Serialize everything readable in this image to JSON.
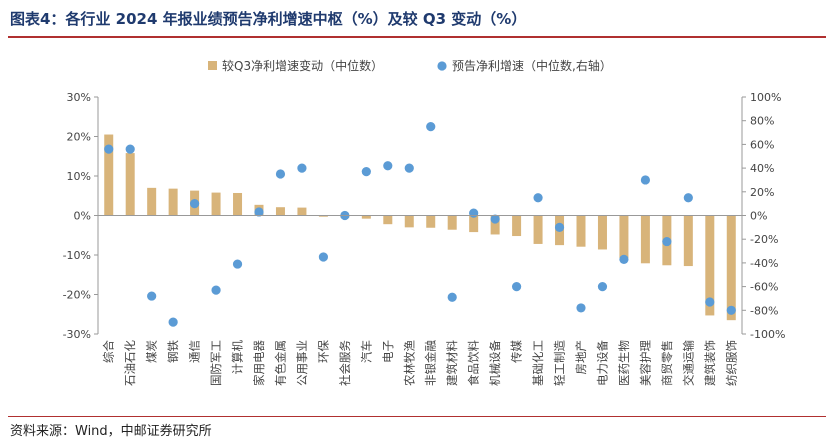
{
  "header": {
    "title": "图表4：各行业 2024 年报业绩预告净利增速中枢（%）及较 Q3 变动（%）"
  },
  "footer": {
    "source": "资料来源：Wind，中邮证券研究所"
  },
  "colors": {
    "bar": "#d8b47a",
    "dot": "#5b9bd5",
    "axis": "#999999",
    "tick_text": "#444444",
    "rule": "#b03030",
    "title": "#1f3a6e"
  },
  "chart_data": {
    "type": "bar",
    "title": "",
    "legend_position": "top-center",
    "grid": false,
    "categories": [
      "综合",
      "石油石化",
      "煤炭",
      "钢铁",
      "通信",
      "国防军工",
      "计算机",
      "家用电器",
      "有色金属",
      "公用事业",
      "环保",
      "社会服务",
      "汽车",
      "电子",
      "农林牧渔",
      "非银金融",
      "建筑材料",
      "食品饮料",
      "机械设备",
      "传媒",
      "基础化工",
      "轻工制造",
      "房地产",
      "电力设备",
      "医药生物",
      "美容护理",
      "商贸零售",
      "交通运输",
      "建筑装饰",
      "纺织服饰"
    ],
    "series": [
      {
        "name": "较Q3净利增速变动（中位数）",
        "type": "bar",
        "axis": "left",
        "values": [
          20.5,
          15.8,
          7.0,
          6.8,
          6.3,
          5.8,
          5.7,
          2.7,
          2.1,
          2.0,
          -0.3,
          -0.5,
          -0.8,
          -2.2,
          -3.0,
          -3.1,
          -3.6,
          -4.2,
          -4.8,
          -5.2,
          -7.2,
          -7.5,
          -7.9,
          -8.6,
          -10.8,
          -12.1,
          -12.6,
          -12.8,
          -25.3,
          -26.5
        ]
      },
      {
        "name": "预告净利增速（中位数,右轴）",
        "type": "scatter",
        "axis": "right",
        "values": [
          56,
          56,
          -68,
          -90,
          10,
          -63,
          -41,
          3,
          35,
          40,
          -35,
          0,
          37,
          42,
          40,
          75,
          -69,
          2,
          -3,
          -60,
          15,
          -10,
          -78,
          -60,
          -37,
          30,
          -22,
          15,
          -73,
          -80
        ]
      }
    ],
    "y_left": {
      "min": -30,
      "max": 30,
      "ticks": [
        "30%",
        "20%",
        "10%",
        "0%",
        "-10%",
        "-20%",
        "-30%"
      ]
    },
    "y_right": {
      "min": -100,
      "max": 100,
      "ticks": [
        "100%",
        "80%",
        "60%",
        "40%",
        "20%",
        "0%",
        "-20%",
        "-40%",
        "-60%",
        "-80%",
        "-100%"
      ]
    }
  }
}
